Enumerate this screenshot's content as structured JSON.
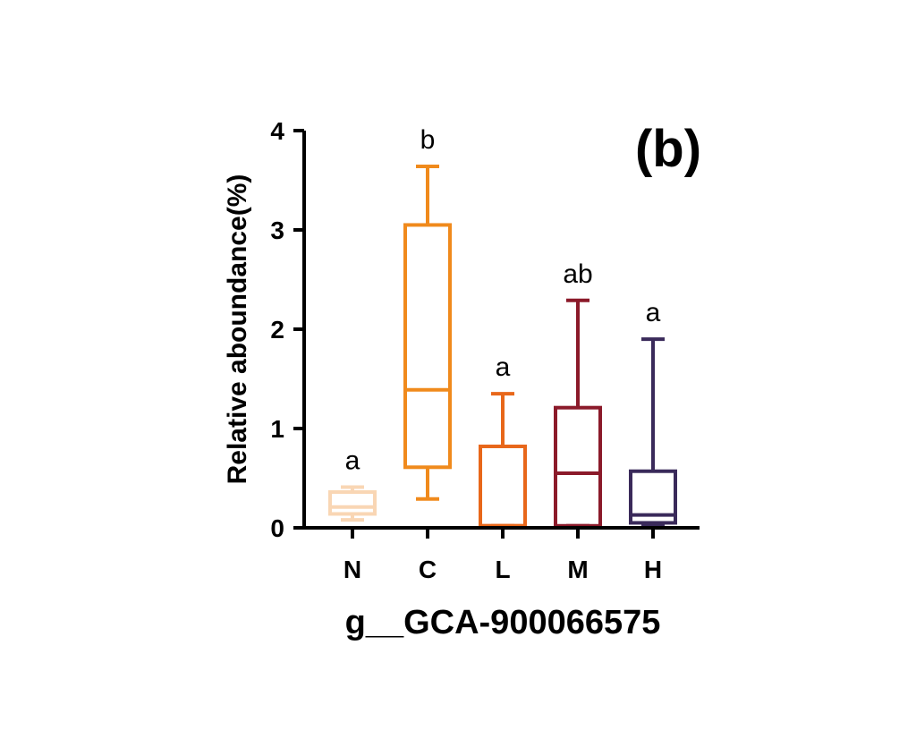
{
  "chart_data": {
    "type": "box",
    "panel_label": "(b)",
    "xlabel": "g__GCA-900066575",
    "ylabel": "Relative aboundance(%)",
    "ylim": [
      0,
      4
    ],
    "yticks": [
      "0",
      "1",
      "2",
      "3",
      "4"
    ],
    "grid": false,
    "categories": [
      "N",
      "C",
      "L",
      "M",
      "H"
    ],
    "series": [
      {
        "category": "N",
        "min": 0.08,
        "q1": 0.14,
        "median": 0.21,
        "q3": 0.36,
        "max": 0.41,
        "letter": "a",
        "color": "#f9d6b4"
      },
      {
        "category": "C",
        "min": 0.29,
        "q1": 0.61,
        "median": 1.39,
        "q3": 3.05,
        "max": 3.64,
        "letter": "b",
        "color": "#f08a1c"
      },
      {
        "category": "L",
        "min": 0.02,
        "q1": 0.02,
        "median": 0.02,
        "q3": 0.82,
        "max": 1.35,
        "letter": "a",
        "color": "#e8671a"
      },
      {
        "category": "M",
        "min": 0.02,
        "q1": 0.02,
        "median": 0.55,
        "q3": 1.21,
        "max": 2.29,
        "letter": "ab",
        "color": "#8b1a2a"
      },
      {
        "category": "H",
        "min": 0.02,
        "q1": 0.05,
        "median": 0.13,
        "q3": 0.57,
        "max": 1.9,
        "letter": "a",
        "color": "#3a2a5a"
      }
    ]
  }
}
